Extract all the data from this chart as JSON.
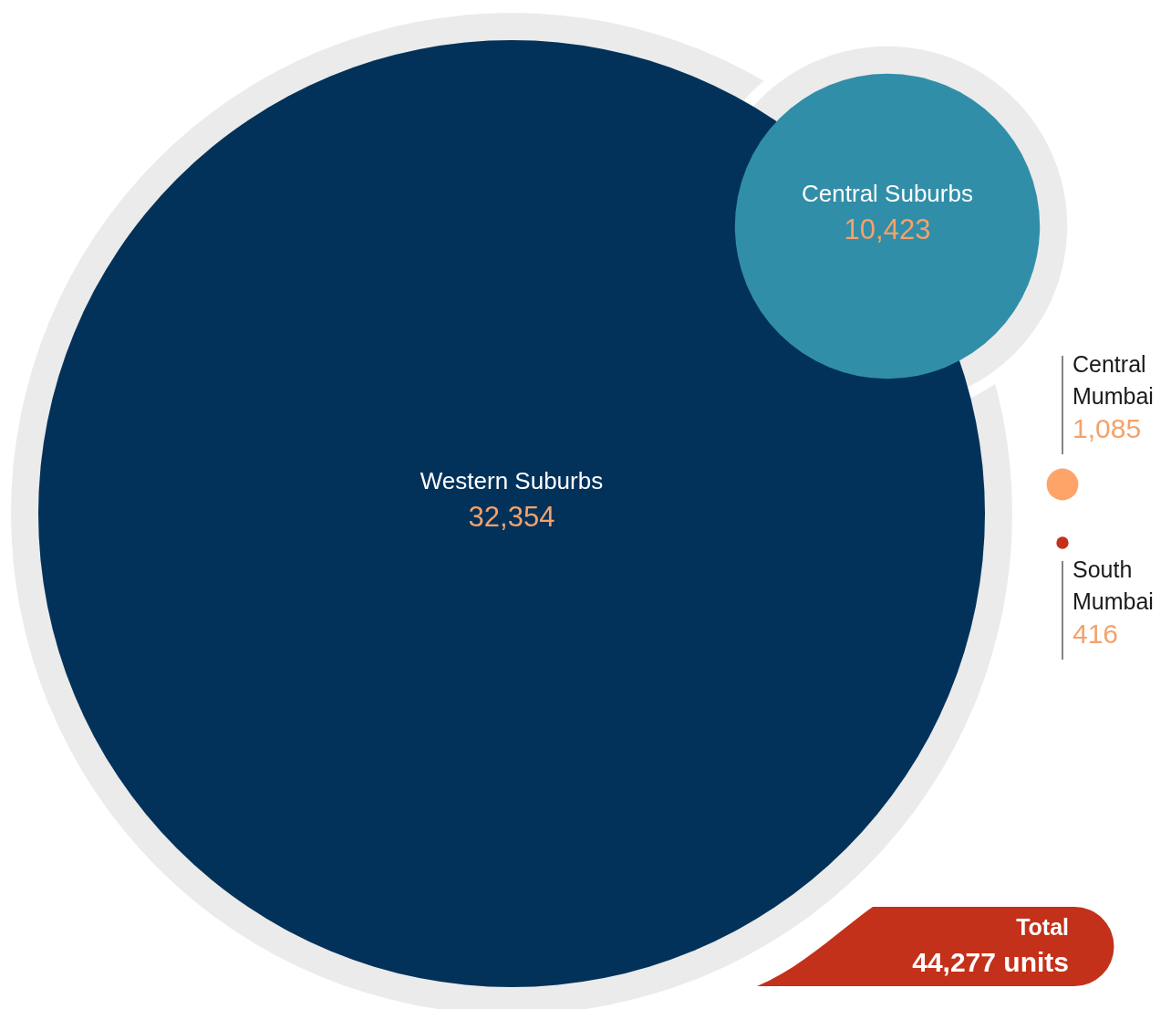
{
  "chart_data": {
    "type": "other",
    "categories": [
      "Western Suburbs",
      "Central Suburbs",
      "Central Mumbai",
      "South Mumbai"
    ],
    "values": [
      32354,
      10423,
      1085,
      416
    ],
    "colors": [
      "#02325a",
      "#318ea8",
      "#ffa469",
      "#c3311a"
    ],
    "value_labels": [
      "32,354",
      "10,423",
      "1,085",
      "416"
    ],
    "annotations": [
      "Total",
      "44,277 units"
    ]
  }
}
